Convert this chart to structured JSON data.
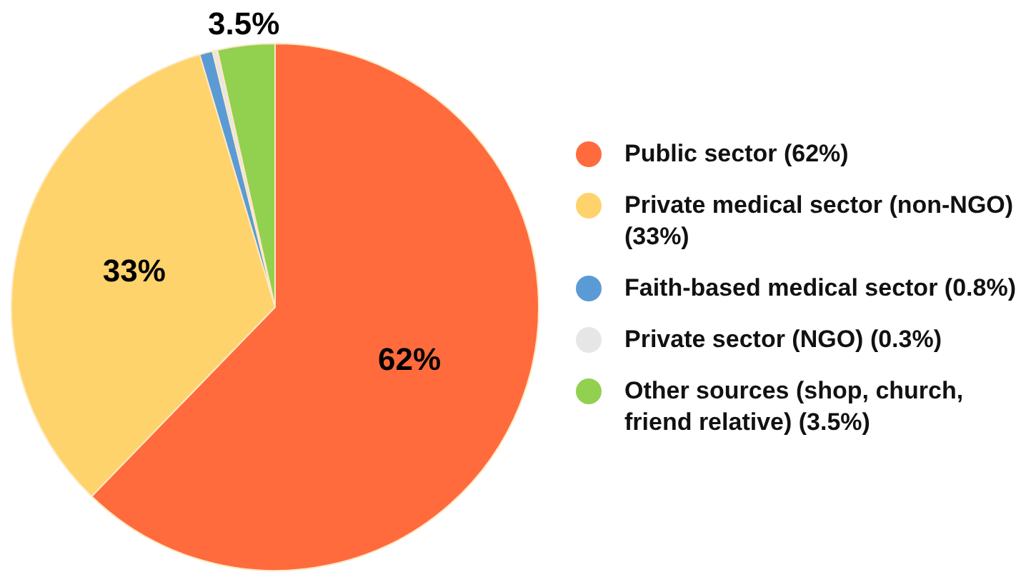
{
  "chart_data": {
    "type": "pie",
    "categories": [
      "Public sector (62%)",
      "Private medical sector (non-NGO) (33%)",
      "Faith-based medical sector (0.8%)",
      "Private sector (NGO) (0.3%)",
      "Other sources (shop, church, friend relative) (3.5%)"
    ],
    "values": [
      62,
      33,
      0.8,
      0.3,
      3.5
    ],
    "colors": [
      "#ff6b3d",
      "#ffd36b",
      "#5b9bd5",
      "#e7e6e6",
      "#92d050"
    ],
    "value_labels": [
      "62%",
      "33%",
      null,
      null,
      "3.5%"
    ],
    "legend": "right"
  }
}
